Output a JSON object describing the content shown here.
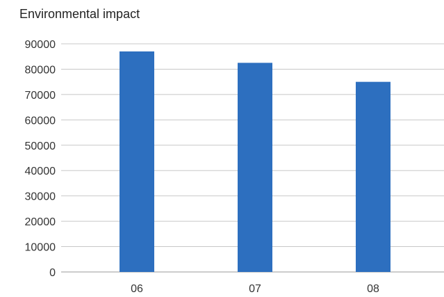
{
  "chart_data": {
    "type": "bar",
    "title": "Environmental impact",
    "xlabel": "",
    "ylabel": "",
    "categories": [
      "06",
      "07",
      "08"
    ],
    "values": [
      87000,
      82500,
      75000
    ],
    "ylim": [
      0,
      90000
    ],
    "yticks": [
      0,
      10000,
      20000,
      30000,
      40000,
      50000,
      60000,
      70000,
      80000,
      90000
    ],
    "ytick_labels": [
      "0",
      "10000",
      "20000",
      "30000",
      "40000",
      "50000",
      "60000",
      "70000",
      "80000",
      "90000"
    ],
    "grid": true,
    "legend": "none",
    "colors": {
      "bar": "#2d6fbf"
    }
  }
}
